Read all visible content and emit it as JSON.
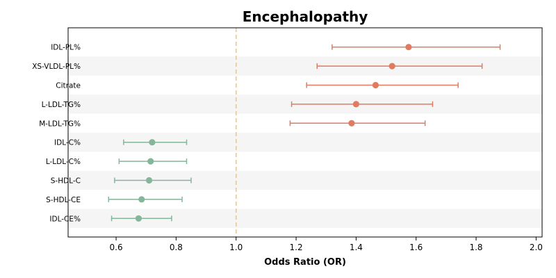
{
  "chart_data": {
    "type": "forest",
    "title": "Encephalopathy",
    "xlabel": "Odds Ratio (OR)",
    "xlim": [
      0.44,
      2.02
    ],
    "xticks": [
      0.6,
      0.8,
      1.0,
      1.2,
      1.4,
      1.6,
      1.8,
      2.0
    ],
    "xtick_labels": [
      "0.6",
      "0.8",
      "1.0",
      "1.2",
      "1.4",
      "1.6",
      "1.8",
      "2.0"
    ],
    "reference_line": 1.0,
    "grid": false,
    "rows": [
      {
        "label": "IDL-PL%",
        "or": 1.575,
        "lower": 1.32,
        "upper": 1.88
      },
      {
        "label": "XS-VLDL-PL%",
        "or": 1.52,
        "lower": 1.27,
        "upper": 1.82
      },
      {
        "label": "Citrate",
        "or": 1.465,
        "lower": 1.235,
        "upper": 1.74
      },
      {
        "label": "L-LDL-TG%",
        "or": 1.4,
        "lower": 1.185,
        "upper": 1.655
      },
      {
        "label": "M-LDL-TG%",
        "or": 1.385,
        "lower": 1.18,
        "upper": 1.63
      },
      {
        "label": "IDL-C%",
        "or": 0.72,
        "lower": 0.625,
        "upper": 0.835
      },
      {
        "label": "L-LDL-C%",
        "or": 0.715,
        "lower": 0.61,
        "upper": 0.835
      },
      {
        "label": "S-HDL-C",
        "or": 0.71,
        "lower": 0.595,
        "upper": 0.85
      },
      {
        "label": "S-HDL-CE",
        "or": 0.685,
        "lower": 0.575,
        "upper": 0.82
      },
      {
        "label": "IDL-CE%",
        "or": 0.675,
        "lower": 0.585,
        "upper": 0.785
      }
    ],
    "colors": {
      "risk": "#e07b62",
      "protective": "#85b59b",
      "reference_line": "#f5c57a",
      "band": "#f5f5f5"
    }
  }
}
